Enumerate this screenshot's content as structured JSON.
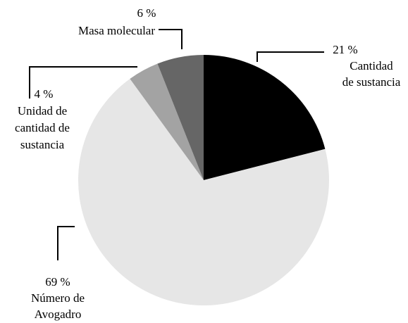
{
  "chart_data": {
    "type": "pie",
    "categories": [
      [
        "Cantidad",
        "de sustancia"
      ],
      [
        "Número de",
        "Avogadro"
      ],
      [
        "Unidad de",
        "cantidad de",
        "sustancia"
      ],
      [
        "Masa molecular"
      ]
    ],
    "values": [
      21,
      69,
      4,
      6
    ],
    "value_labels": [
      "21 %",
      "69 %",
      "4 %",
      "6 %"
    ],
    "colors": [
      "#000000",
      "#e6e6e6",
      "#a3a3a3",
      "#666666"
    ]
  }
}
